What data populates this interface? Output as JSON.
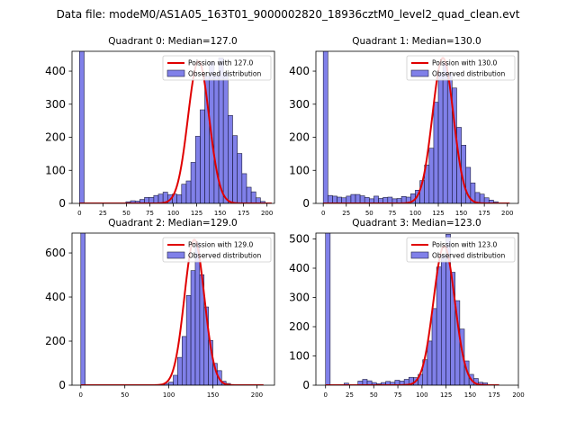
{
  "suptitle": "Data file: modeM0/AS1A05_163T01_9000002820_18936cztM0_level2_quad_clean.evt",
  "chart_data": [
    {
      "type": "bar",
      "title": "Quadrant 0: Median=127.0",
      "legend": {
        "line": "Poission with 127.0",
        "bar": "Observed distribution",
        "placement": "upper right"
      },
      "xlim": [
        -8,
        208
      ],
      "ylim": [
        0,
        460
      ],
      "xticks": [
        0,
        25,
        50,
        75,
        100,
        125,
        150,
        175,
        200
      ],
      "yticks": [
        0,
        100,
        200,
        300,
        400
      ],
      "zero_bin_clipped": true,
      "bins": {
        "start": 0,
        "width": 4.95,
        "values": [
          990,
          0,
          0,
          0,
          0,
          0,
          0,
          0,
          0,
          1,
          5,
          8,
          7,
          12,
          18,
          18,
          24,
          28,
          34,
          26,
          28,
          26,
          58,
          68,
          124,
          203,
          283,
          386,
          428,
          387,
          440,
          393,
          266,
          205,
          151,
          90,
          49,
          35,
          17,
          6,
          0,
          0
        ]
      },
      "poisson": {
        "mean": 127.0,
        "peak": 430
      }
    },
    {
      "type": "bar",
      "title": "Quadrant 1: Median=130.0",
      "legend": {
        "line": "Poission with 130.0",
        "bar": "Observed distribution",
        "placement": "upper right"
      },
      "xlim": [
        -8,
        212
      ],
      "ylim": [
        0,
        460
      ],
      "xticks": [
        0,
        25,
        50,
        75,
        100,
        125,
        150,
        175,
        200
      ],
      "yticks": [
        0,
        100,
        200,
        300,
        400
      ],
      "zero_bin_clipped": true,
      "bins": {
        "start": 0,
        "width": 5.0,
        "values": [
          990,
          24,
          22,
          19,
          17,
          22,
          27,
          27,
          23,
          18,
          14,
          22,
          15,
          18,
          19,
          14,
          15,
          21,
          19,
          29,
          40,
          69,
          116,
          167,
          306,
          396,
          424,
          393,
          349,
          230,
          176,
          109,
          62,
          33,
          28,
          17,
          10,
          5,
          0,
          0,
          0
        ]
      },
      "poisson": {
        "mean": 130.0,
        "peak": 440
      }
    },
    {
      "type": "bar",
      "title": "Quadrant 2: Median=129.0",
      "legend": {
        "line": "Poission with 129.0",
        "bar": "Observed distribution",
        "placement": "upper right"
      },
      "xlim": [
        -10,
        220
      ],
      "ylim": [
        0,
        690
      ],
      "xticks": [
        0,
        50,
        100,
        150,
        200
      ],
      "yticks": [
        0,
        200,
        400,
        600
      ],
      "zero_bin_clipped": true,
      "bins": {
        "start": 0,
        "width": 5.0,
        "values": [
          1500,
          0,
          0,
          0,
          0,
          0,
          0,
          0,
          0,
          0,
          0,
          0,
          0,
          0,
          0,
          0,
          0,
          3,
          5,
          8,
          14,
          45,
          126,
          221,
          407,
          520,
          647,
          501,
          355,
          203,
          99,
          66,
          18,
          8,
          3,
          0,
          0,
          0,
          0,
          0,
          0,
          0
        ]
      },
      "poisson": {
        "mean": 129.0,
        "peak": 660
      }
    },
    {
      "type": "bar",
      "title": "Quadrant 3: Median=123.0",
      "legend": {
        "line": "Poission with 123.0",
        "bar": "Observed distribution",
        "placement": "upper right"
      },
      "xlim": [
        -10,
        200
      ],
      "ylim": [
        0,
        520
      ],
      "xticks": [
        0,
        25,
        50,
        75,
        100,
        125,
        150,
        175,
        200
      ],
      "yticks": [
        0,
        100,
        200,
        300,
        400,
        500
      ],
      "zero_bin_clipped": true,
      "bins": {
        "start": 0,
        "width": 4.8,
        "values": [
          1100,
          0,
          0,
          0,
          7,
          0,
          1,
          14,
          20,
          15,
          9,
          5,
          9,
          13,
          10,
          17,
          14,
          20,
          27,
          26,
          37,
          87,
          151,
          262,
          404,
          445,
          516,
          386,
          289,
          192,
          83,
          37,
          23,
          10,
          8,
          0,
          0,
          0
        ]
      },
      "poisson": {
        "mean": 123.0,
        "peak": 475
      }
    }
  ]
}
